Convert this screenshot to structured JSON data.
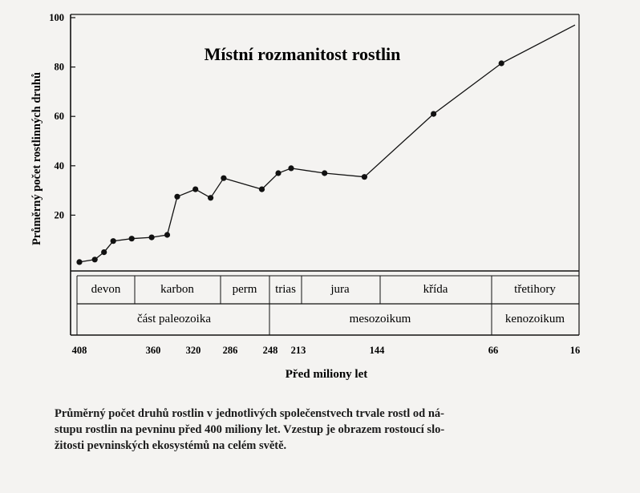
{
  "chart_data": {
    "type": "line",
    "title": "Místní rozmanitost rostlin",
    "ylabel": "Průměrný počet rostlinných druhů",
    "xlabel": "Před miliony let",
    "ylim": [
      0,
      100
    ],
    "y_ticks": [
      20,
      40,
      60,
      80,
      100
    ],
    "x_ticks": [
      "408",
      "360",
      "320",
      "286",
      "248",
      "213",
      "144",
      "66",
      "16"
    ],
    "series": [
      {
        "points": [
          {
            "x": 408,
            "y": 1
          },
          {
            "x": 398,
            "y": 2
          },
          {
            "x": 392,
            "y": 5
          },
          {
            "x": 386,
            "y": 9.5
          },
          {
            "x": 374,
            "y": 10.5
          },
          {
            "x": 361,
            "y": 11
          },
          {
            "x": 346,
            "y": 12
          },
          {
            "x": 336,
            "y": 27.5
          },
          {
            "x": 318,
            "y": 30.5
          },
          {
            "x": 304,
            "y": 27
          },
          {
            "x": 292,
            "y": 35
          },
          {
            "x": 256,
            "y": 30.5
          },
          {
            "x": 238,
            "y": 37
          },
          {
            "x": 222,
            "y": 39
          },
          {
            "x": 190,
            "y": 37
          },
          {
            "x": 155,
            "y": 35.5
          },
          {
            "x": 106,
            "y": 61
          },
          {
            "x": 61,
            "y": 81.5
          },
          {
            "x": 16,
            "y": 97
          }
        ]
      }
    ],
    "periods": [
      {
        "label": "devon"
      },
      {
        "label": "karbon"
      },
      {
        "label": "perm"
      },
      {
        "label": "trias"
      },
      {
        "label": "jura"
      },
      {
        "label": "křída"
      },
      {
        "label": "třetihory"
      }
    ],
    "eras": [
      {
        "label": "část paleozoika"
      },
      {
        "label": "mesozoikum"
      },
      {
        "label": "kenozoikum"
      }
    ],
    "grid": false,
    "line_color": "#111111"
  },
  "caption": {
    "line1": "Průměrný počet druhů rostlin v jednotlivých společenstvech trvale rostl od ná-",
    "line2": "stupu rostlin na pevninu před 400 miliony let. Vzestup je obrazem rostoucí slo-",
    "line3": "žitosti pevninských ekosystémů na celém světě."
  }
}
